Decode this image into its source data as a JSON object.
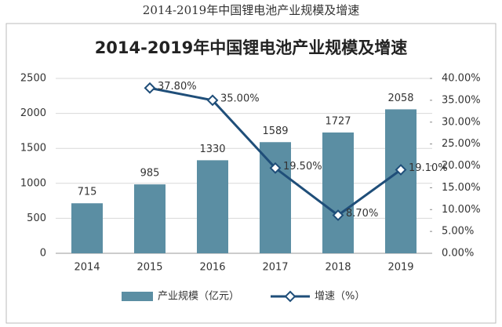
{
  "caption": "2014-2019年中国锂电池产业规模及增速",
  "chart_data": {
    "type": "bar",
    "title": "2014-2019年中国锂电池产业规模及增速",
    "categories": [
      "2014",
      "2015",
      "2016",
      "2017",
      "2018",
      "2019"
    ],
    "series": [
      {
        "name": "产业规模（亿元）",
        "type": "bar",
        "color": "#5b8ea3",
        "values": [
          715,
          985,
          1330,
          1589,
          1727,
          2058
        ]
      },
      {
        "name": "增速（%）",
        "type": "line",
        "axis": "y2",
        "color": "#1f4e79",
        "values": [
          null,
          37.8,
          35,
          19.5,
          8.7,
          19.1
        ],
        "value_labels": [
          null,
          "37.80%",
          "35.00%",
          "19.50%",
          "8.70%",
          "19.10%"
        ]
      }
    ],
    "ylim": [
      0,
      2500
    ],
    "yticks": [
      0,
      500,
      1000,
      1500,
      2000,
      2500
    ],
    "y2lim": [
      0,
      40
    ],
    "y2ticks": [
      {
        "value": 0,
        "label": "0.00%"
      },
      {
        "value": 5,
        "label": "5.00%"
      },
      {
        "value": 10,
        "label": "10.00%"
      },
      {
        "value": 15,
        "label": "15.00%"
      },
      {
        "value": 20,
        "label": "20.00%"
      },
      {
        "value": 25,
        "label": "25.00%"
      },
      {
        "value": 30,
        "label": "30.00%"
      },
      {
        "value": 35,
        "label": "35.00%"
      },
      {
        "value": 40,
        "label": "40.00%"
      }
    ],
    "grid": true,
    "legend": "bottom"
  }
}
